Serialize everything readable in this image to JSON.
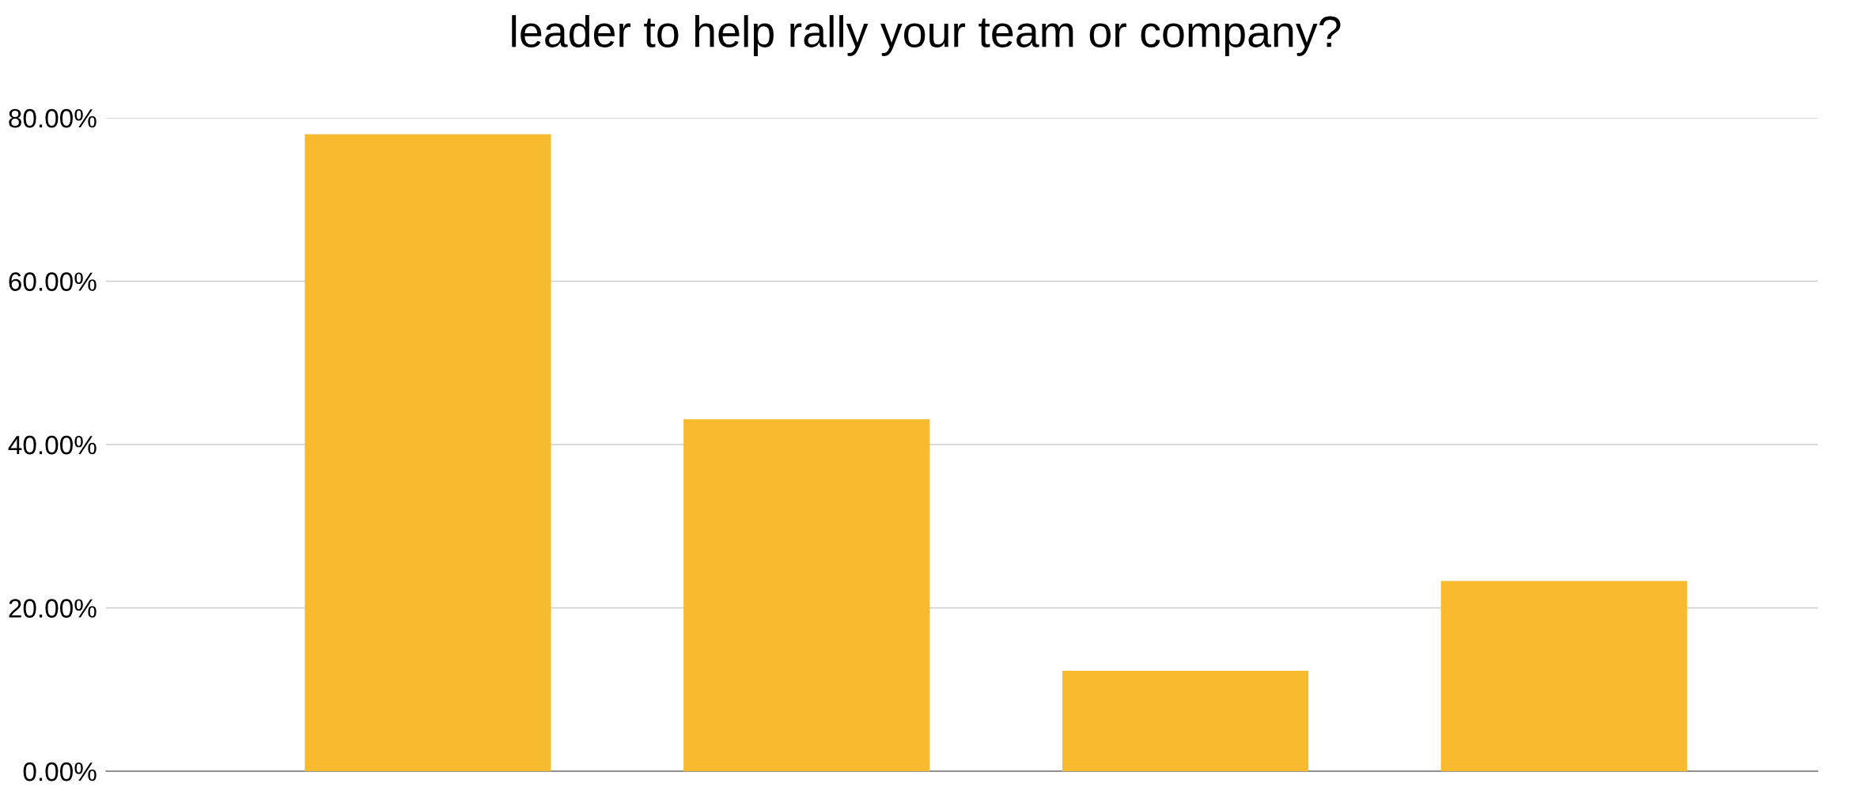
{
  "chart_data": {
    "type": "bar",
    "title": "leader to help rally your team or company?",
    "categories": [
      null,
      null,
      null,
      null
    ],
    "values": [
      78.0,
      43.1,
      12.3,
      23.3
    ],
    "color": "#f8ba2e",
    "ylim": [
      0,
      80
    ],
    "yticks": [
      {
        "value": 0,
        "label": "0.00%"
      },
      {
        "value": 20,
        "label": "20.00%"
      },
      {
        "value": 40,
        "label": "40.00%"
      },
      {
        "value": 60,
        "label": "60.00%"
      },
      {
        "value": 80,
        "label": "80.00%"
      }
    ],
    "grid": "y"
  }
}
